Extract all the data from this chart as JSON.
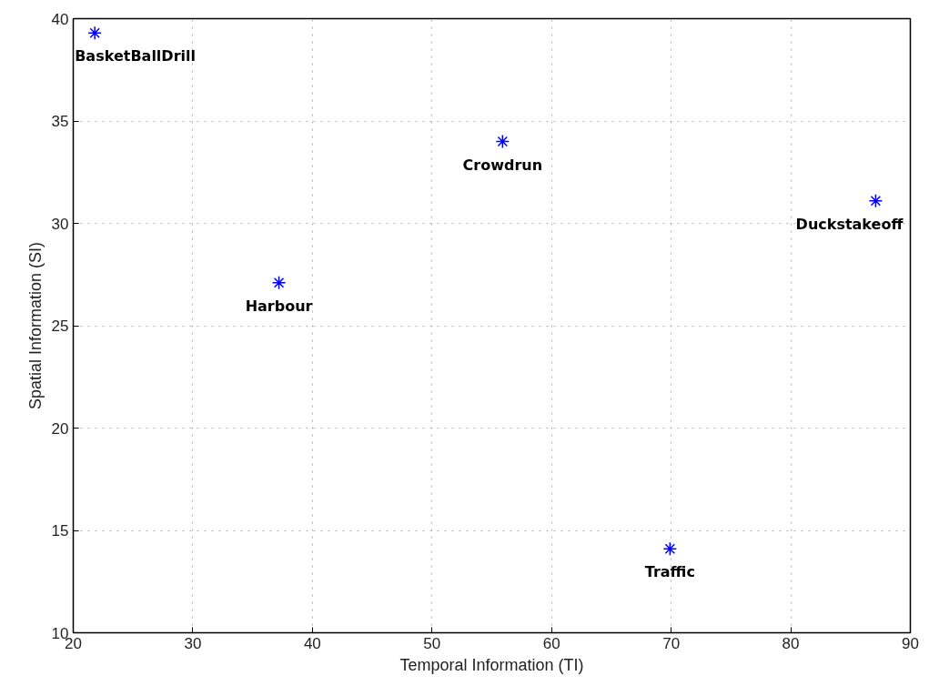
{
  "chart_data": {
    "type": "scatter",
    "xlabel": "Temporal Information (TI)",
    "ylabel": "Spatial Information (SI)",
    "series": [
      {
        "color": "#0000ff",
        "x": [
          21.8,
          37.2,
          55.9,
          87.1,
          69.9
        ],
        "values": [
          39.3,
          27.1,
          34.0,
          31.1,
          14.1
        ]
      }
    ],
    "annotations": [
      {
        "text": "BasketBallDrill",
        "x": 21.8,
        "y": 39.3
      },
      {
        "text": "Harbour",
        "x": 37.2,
        "y": 27.1
      },
      {
        "text": "Crowdrun",
        "x": 55.9,
        "y": 34.0
      },
      {
        "text": "Duckstakeoff",
        "x": 87.1,
        "y": 31.1
      },
      {
        "text": "Traffic",
        "x": 69.9,
        "y": 14.1
      }
    ],
    "xlim": [
      20,
      90
    ],
    "ylim": [
      10,
      40
    ],
    "xticks": [
      20,
      30,
      40,
      50,
      60,
      70,
      80,
      90
    ],
    "yticks": [
      10,
      15,
      20,
      25,
      30,
      35,
      40
    ],
    "grid": true,
    "marker": "cross"
  }
}
